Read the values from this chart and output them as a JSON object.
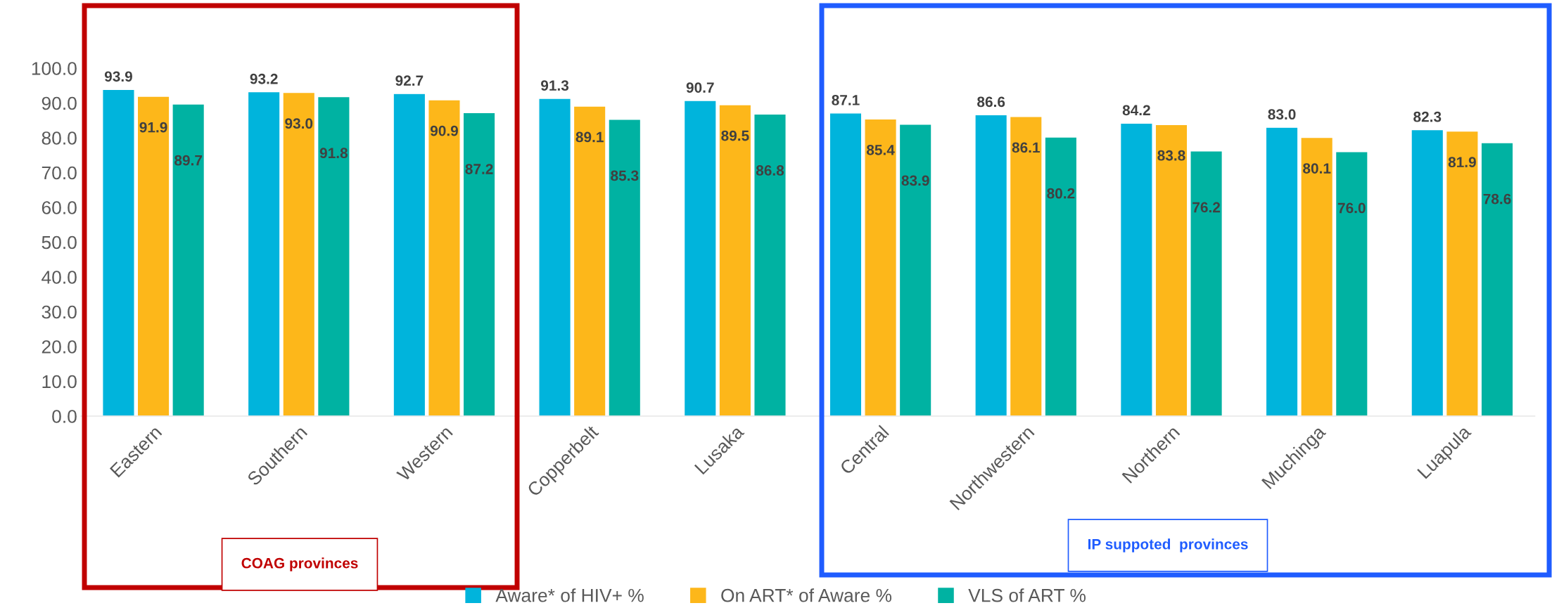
{
  "chart_data": {
    "type": "bar",
    "categories": [
      "Eastern",
      "Southern",
      "Western",
      "Copperbelt",
      "Lusaka",
      "Central",
      "Northwestern",
      "Northern",
      "Muchinga",
      "Luapula"
    ],
    "series": [
      {
        "name": "Aware* of HIV+ %",
        "color": "#00b4dc",
        "values": [
          93.9,
          93.2,
          92.7,
          91.3,
          90.7,
          87.1,
          86.6,
          84.2,
          83.0,
          82.3
        ],
        "value_labels": [
          "93.9",
          "93.2",
          "92.7",
          "91.3",
          "90.7",
          "87.1",
          "86.6",
          "84.2",
          "83.0",
          "82.3"
        ]
      },
      {
        "name": "On ART* of Aware %",
        "color": "#fdb71a",
        "values": [
          91.9,
          93.0,
          90.9,
          89.1,
          89.5,
          85.4,
          86.1,
          83.8,
          80.1,
          81.9
        ],
        "value_labels": [
          "91.9",
          "93.0",
          "90.9",
          "89.1",
          "89.5",
          "85.4",
          "86.1",
          "83.8",
          "80.1",
          "81.9"
        ]
      },
      {
        "name": "VLS of ART %",
        "color": "#00b2a2",
        "values": [
          89.7,
          91.8,
          87.2,
          85.3,
          86.8,
          83.9,
          80.2,
          76.2,
          76.0,
          78.6
        ],
        "value_labels": [
          "89.7",
          "91.8",
          "87.2",
          "85.3",
          "86.8",
          "83.9",
          "80.2",
          "76.2",
          "76.0",
          "78.6"
        ]
      }
    ],
    "ylim": [
      0,
      100
    ],
    "yticks": [
      {
        "value": 0,
        "label": "0.0"
      },
      {
        "value": 10,
        "label": "10.0"
      },
      {
        "value": 20,
        "label": "20.0"
      },
      {
        "value": 30,
        "label": "30.0"
      },
      {
        "value": 40,
        "label": "40.0"
      },
      {
        "value": 50,
        "label": "50.0"
      },
      {
        "value": 60,
        "label": "60.0"
      },
      {
        "value": 70,
        "label": "70.0"
      },
      {
        "value": 80,
        "label": "80.0"
      },
      {
        "value": 90,
        "label": "90.0"
      },
      {
        "value": 100,
        "label": "100.0"
      }
    ],
    "grid": false,
    "legend": "bottom",
    "annotations": [
      "COAG provinces",
      "IP suppoted  provinces"
    ]
  }
}
